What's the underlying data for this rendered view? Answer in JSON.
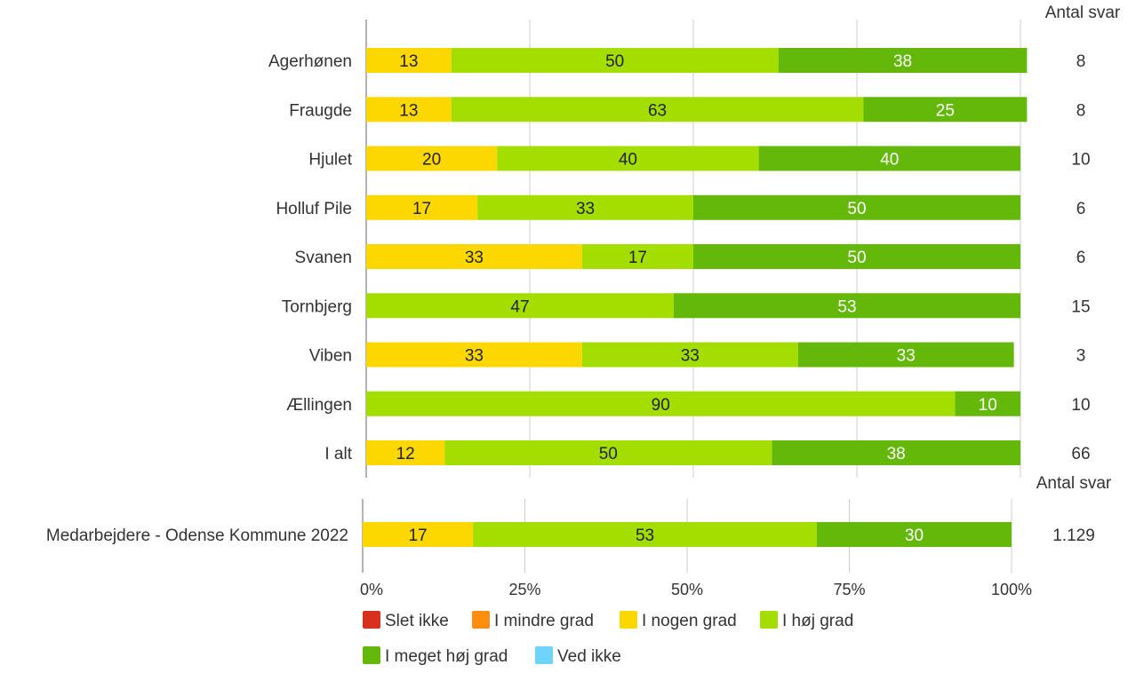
{
  "chart_data": [
    {
      "type": "bar",
      "orientation": "horizontal",
      "stacked": "percent",
      "categories": [
        "Agerhønen",
        "Fraugde",
        "Hjulet",
        "Holluf Pile",
        "Svanen",
        "Tornbjerg",
        "Viben",
        "Ællingen",
        "I alt"
      ],
      "series": [
        {
          "name": "Slet ikke",
          "values": [
            0,
            0,
            0,
            0,
            0,
            0,
            0,
            0,
            0
          ]
        },
        {
          "name": "I mindre grad",
          "values": [
            0,
            0,
            0,
            0,
            0,
            0,
            0,
            0,
            0
          ]
        },
        {
          "name": "I nogen grad",
          "values": [
            13,
            13,
            20,
            17,
            33,
            0,
            33,
            0,
            12
          ]
        },
        {
          "name": "I høj grad",
          "values": [
            50,
            63,
            40,
            33,
            17,
            47,
            33,
            90,
            50
          ]
        },
        {
          "name": "I meget høj grad",
          "values": [
            38,
            25,
            40,
            50,
            50,
            53,
            33,
            10,
            38
          ]
        },
        {
          "name": "Ved ikke",
          "values": [
            0,
            0,
            0,
            0,
            0,
            0,
            0,
            0,
            0
          ]
        }
      ],
      "count_header": "Antal svar",
      "counts": [
        "8",
        "8",
        "10",
        "6",
        "6",
        "15",
        "3",
        "10",
        "66"
      ],
      "xlim": [
        0,
        100
      ],
      "grid": true
    },
    {
      "type": "bar",
      "orientation": "horizontal",
      "stacked": "percent",
      "categories": [
        "Medarbejdere - Odense Kommune 2022"
      ],
      "series": [
        {
          "name": "Slet ikke",
          "values": [
            0
          ]
        },
        {
          "name": "I mindre grad",
          "values": [
            0
          ]
        },
        {
          "name": "I nogen grad",
          "values": [
            17
          ]
        },
        {
          "name": "I høj grad",
          "values": [
            53
          ]
        },
        {
          "name": "I meget høj grad",
          "values": [
            30
          ]
        },
        {
          "name": "Ved ikke",
          "values": [
            0
          ]
        }
      ],
      "count_header": "Antal svar",
      "counts": [
        "1.129"
      ],
      "xlim": [
        0,
        100
      ],
      "x_ticks": [
        "0%",
        "25%",
        "50%",
        "75%",
        "100%"
      ],
      "grid": true
    }
  ],
  "legend": {
    "position": "bottom",
    "items": [
      {
        "label": "Slet ikke",
        "color": "#d7301f"
      },
      {
        "label": "I mindre grad",
        "color": "#fc8d0f"
      },
      {
        "label": "I nogen grad",
        "color": "#fdd800"
      },
      {
        "label": "I høj grad",
        "color": "#a3de00"
      },
      {
        "label": "I meget høj grad",
        "color": "#63b80a"
      },
      {
        "label": "Ved ikke",
        "color": "#6fd3fa"
      }
    ]
  },
  "series_colors": [
    "#d7301f",
    "#fc8d0f",
    "#fdd800",
    "#a3de00",
    "#63b80a",
    "#6fd3fa"
  ],
  "label_colors": [
    "#ffffff",
    "#222222",
    "#222222",
    "#222222",
    "#ffffff",
    "#222222"
  ]
}
